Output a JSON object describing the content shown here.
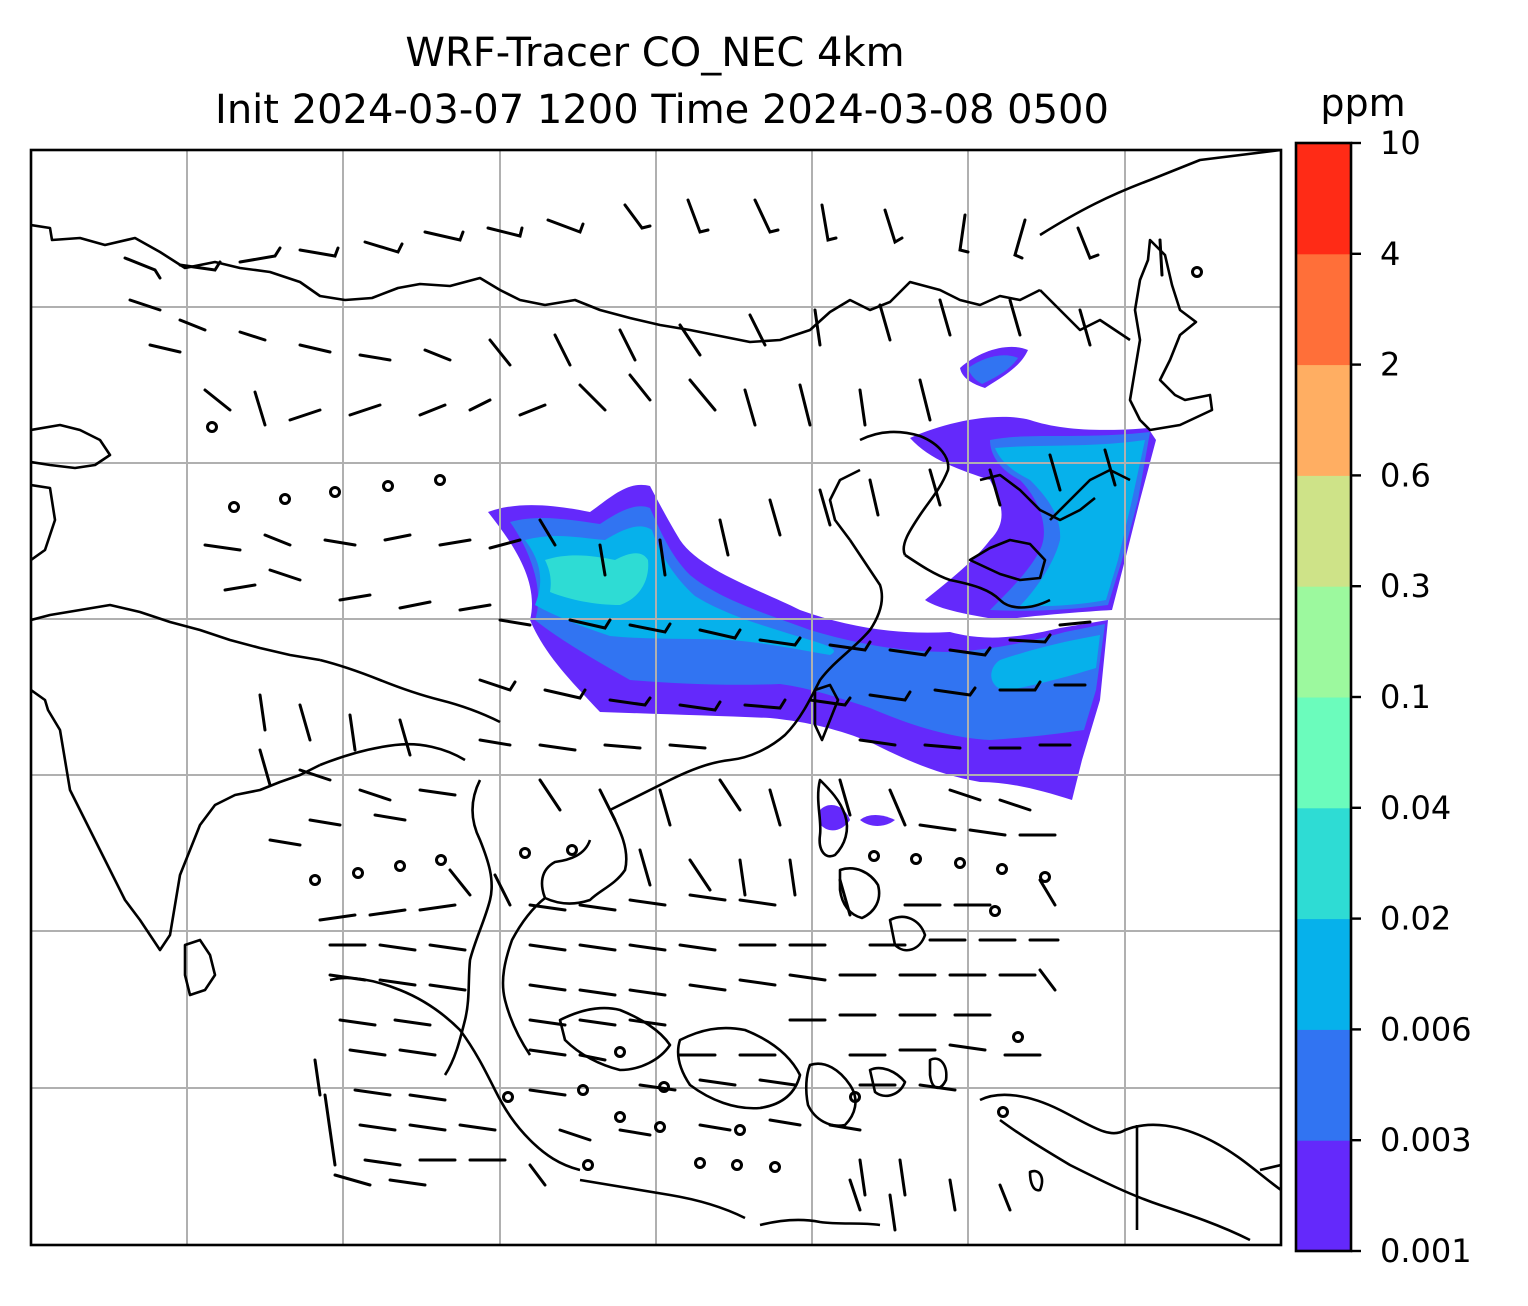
{
  "title": {
    "line1": "WRF-Tracer CO_NEC 4km",
    "line2": "Init 2024-03-07 1200 Time 2024-03-08 0500"
  },
  "colorbar": {
    "unit": "ppm",
    "levels": [
      "0.001",
      "0.003",
      "0.006",
      "0.02",
      "0.04",
      "0.1",
      "0.3",
      "0.6",
      "2",
      "4",
      "10"
    ],
    "colors": [
      "#6429fb",
      "#3174f2",
      "#06b1eb",
      "#2edcd4",
      "#6bfcbc",
      "#9cf99e",
      "#ceE388",
      "#ffae62",
      "#ff6f39",
      "#ff2b16"
    ]
  },
  "map": {
    "gridlines": true,
    "coastline_color": "#000000",
    "grid_color": "#b0b0b0"
  }
}
